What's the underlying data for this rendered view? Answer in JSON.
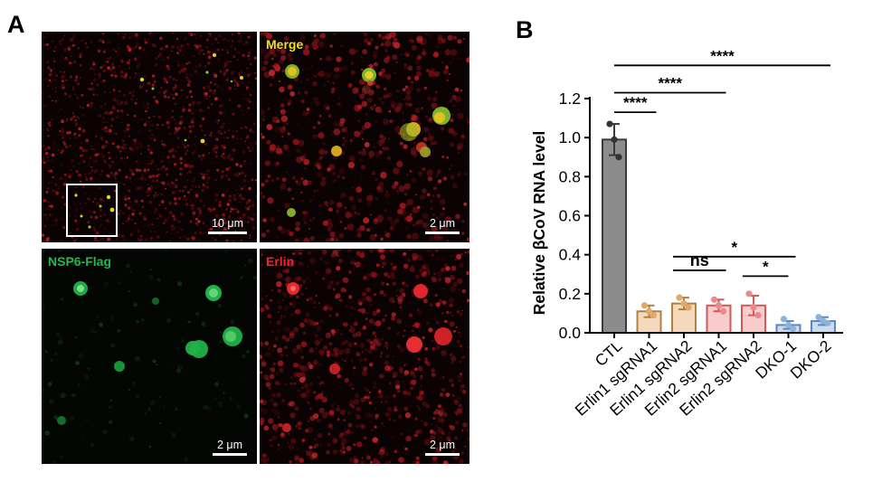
{
  "panels": {
    "a_letter": "A",
    "b_letter": "B"
  },
  "micrographs": {
    "overview": {
      "scale_label": "10 μm"
    },
    "merge": {
      "label": "Merge",
      "label_color": "#f2e21e",
      "scale_label": "2 μm"
    },
    "nsp6": {
      "label": "NSP6-Flag",
      "label_color": "#25b84a",
      "scale_label": "2 μm"
    },
    "erlin": {
      "label": "Erlin",
      "label_color": "#f0252a",
      "scale_label": "2 μm"
    }
  },
  "chart_data": {
    "type": "bar",
    "ylabel": "Relative βCoV RNA level",
    "ylim": [
      0,
      1.2
    ],
    "yticks": [
      "0.0",
      "0.2",
      "0.4",
      "0.6",
      "0.8",
      "1.0",
      "1.2"
    ],
    "categories": [
      "CTL",
      "Erlin1 sgRNA1",
      "Erlin1 sgRNA2",
      "Erlin2 sgRNA1",
      "Erlin2 sgRNA2",
      "DKO-1",
      "DKO-2"
    ],
    "values": [
      0.99,
      0.11,
      0.15,
      0.14,
      0.14,
      0.04,
      0.06
    ],
    "errors": [
      0.08,
      0.03,
      0.03,
      0.03,
      0.05,
      0.02,
      0.02
    ],
    "points": [
      [
        1.07,
        0.99,
        0.9
      ],
      [
        0.14,
        0.11,
        0.09
      ],
      [
        0.18,
        0.15,
        0.13
      ],
      [
        0.17,
        0.14,
        0.11
      ],
      [
        0.2,
        0.13,
        0.09
      ],
      [
        0.07,
        0.04,
        0.02
      ],
      [
        0.08,
        0.06,
        0.05
      ]
    ],
    "bar_colors": [
      "#8c8c8c",
      "#f4d9bd",
      "#f4d9bd",
      "#f8cccc",
      "#f8cccc",
      "#cbdcef",
      "#cbdcef"
    ],
    "edge_colors": [
      "#3a3a3a",
      "#ad8046",
      "#ad8046",
      "#d65758",
      "#d65758",
      "#5c86bd",
      "#5c86bd"
    ],
    "dot_colors": [
      "#333333",
      "#e1a868",
      "#e1a868",
      "#eb8a8a",
      "#eb8a8a",
      "#8fb2d9",
      "#8fb2d9"
    ],
    "significance": [
      {
        "from": 0,
        "to": 1,
        "label": "****"
      },
      {
        "from": 0,
        "to": 3,
        "label": "****"
      },
      {
        "from": 0,
        "to": 6,
        "label": "****"
      },
      {
        "from": 2,
        "to": 3,
        "label": "ns"
      },
      {
        "from": 2,
        "to": 5,
        "label": "*"
      },
      {
        "from": 4,
        "to": 5,
        "label": "*"
      }
    ]
  }
}
